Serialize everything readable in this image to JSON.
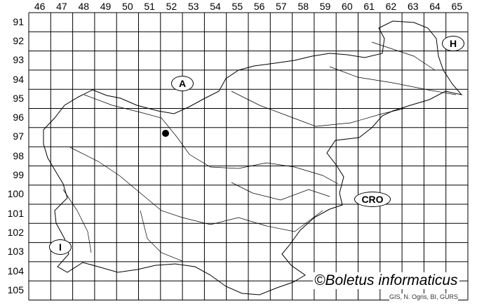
{
  "map": {
    "columns": [
      "46",
      "47",
      "48",
      "49",
      "50",
      "51",
      "52",
      "53",
      "54",
      "55",
      "56",
      "57",
      "58",
      "59",
      "60",
      "61",
      "62",
      "63",
      "64",
      "65"
    ],
    "rows": [
      "91",
      "92",
      "93",
      "94",
      "95",
      "96",
      "97",
      "98",
      "99",
      "100",
      "101",
      "102",
      "103",
      "104",
      "105"
    ],
    "country_labels": {
      "austria": "A",
      "hungary": "H",
      "croatia": "CRO",
      "italy": "I"
    },
    "occurrence_points": [
      {
        "column": "52",
        "row": "97"
      }
    ],
    "copyright": "©Boletus informaticus",
    "credit": "GIS, N. Ogris, BI, GURS"
  }
}
